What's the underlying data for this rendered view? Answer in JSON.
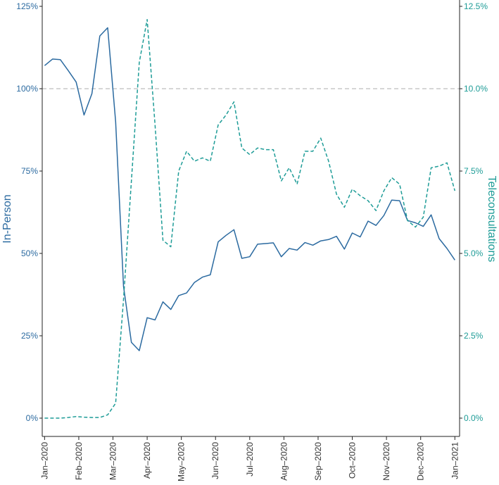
{
  "chart_data": {
    "type": "line",
    "y_left_label": "In-Person",
    "y_right_label": "Teleconsultations",
    "y_left_ticks": [
      "0%",
      "25%",
      "50%",
      "75%",
      "100%",
      "125%"
    ],
    "y_right_ticks": [
      "0.0%",
      "2.5%",
      "5.0%",
      "7.5%",
      "10.0%",
      "12.5%"
    ],
    "y_left_lim": [
      0,
      125
    ],
    "y_right_lim": [
      0,
      12.5
    ],
    "x_ticks": [
      "Jan–2020",
      "Feb–2020",
      "Mar–2020",
      "Apr–2020",
      "May–2020",
      "Jun–2020",
      "Jul–2020",
      "Aug–2020",
      "Sep–2020",
      "Oct–2020",
      "Nov–2020",
      "Dec–2020",
      "Jan–2021"
    ],
    "x_lim_weeks": [
      -0.3,
      52.6
    ],
    "reference_line": {
      "axis": "left",
      "value": 100,
      "style": "dashed"
    },
    "series": [
      {
        "name": "In-Person",
        "axis": "left",
        "color": "#2b6aa0",
        "style": "solid",
        "x": [
          0,
          1,
          2,
          3,
          4,
          5,
          6,
          7,
          8,
          9,
          10,
          11,
          12,
          13,
          14,
          15,
          16,
          17,
          18,
          19,
          20,
          21,
          22,
          23,
          24,
          25,
          26,
          27,
          28,
          29,
          30,
          31,
          32,
          33,
          34,
          35,
          36,
          37,
          38,
          39,
          40,
          41,
          42,
          43,
          44,
          45,
          46,
          47,
          48,
          49,
          50,
          51,
          52
        ],
        "values": [
          107,
          109,
          108.8,
          105.5,
          102,
          92,
          98.5,
          116,
          118.5,
          90,
          40,
          23,
          20.5,
          30.5,
          29.8,
          35.3,
          33,
          37.2,
          38,
          41.2,
          42.8,
          43.5,
          53.5,
          55.5,
          57.2,
          48.5,
          49,
          52.8,
          53,
          53.2,
          49,
          51.5,
          51,
          53.3,
          52.5,
          53.8,
          54.2,
          55.2,
          51.3,
          56.2,
          55,
          59.8,
          58.5,
          61.5,
          66.2,
          66,
          60,
          59.3,
          58.2,
          61.7,
          54.5,
          51.5,
          48
        ]
      },
      {
        "name": "Teleconsultations",
        "axis": "right",
        "color": "#1e9c97",
        "style": "dashed",
        "x": [
          0,
          1,
          2,
          3,
          4,
          5,
          6,
          7,
          8,
          9,
          10,
          11,
          12,
          13,
          14,
          15,
          16,
          17,
          18,
          19,
          20,
          21,
          22,
          23,
          24,
          25,
          26,
          27,
          28,
          29,
          30,
          31,
          32,
          33,
          34,
          35,
          36,
          37,
          38,
          39,
          40,
          41,
          42,
          43,
          44,
          45,
          46,
          47,
          48,
          49,
          50,
          51,
          52
        ],
        "values": [
          0,
          0,
          0,
          0.02,
          0.05,
          0.03,
          0.02,
          0.02,
          0.1,
          0.45,
          3.6,
          7.2,
          10.8,
          12.1,
          8.9,
          5.4,
          5.2,
          7.5,
          8.1,
          7.8,
          7.9,
          7.8,
          8.9,
          9.2,
          9.6,
          8.2,
          8,
          8.2,
          8.15,
          8.15,
          7.2,
          7.6,
          7.1,
          8.1,
          8.1,
          8.5,
          7.8,
          6.8,
          6.4,
          6.95,
          6.75,
          6.6,
          6.3,
          6.9,
          7.3,
          7.1,
          6.0,
          5.8,
          6.1,
          7.6,
          7.65,
          7.75,
          6.9
        ]
      }
    ]
  }
}
